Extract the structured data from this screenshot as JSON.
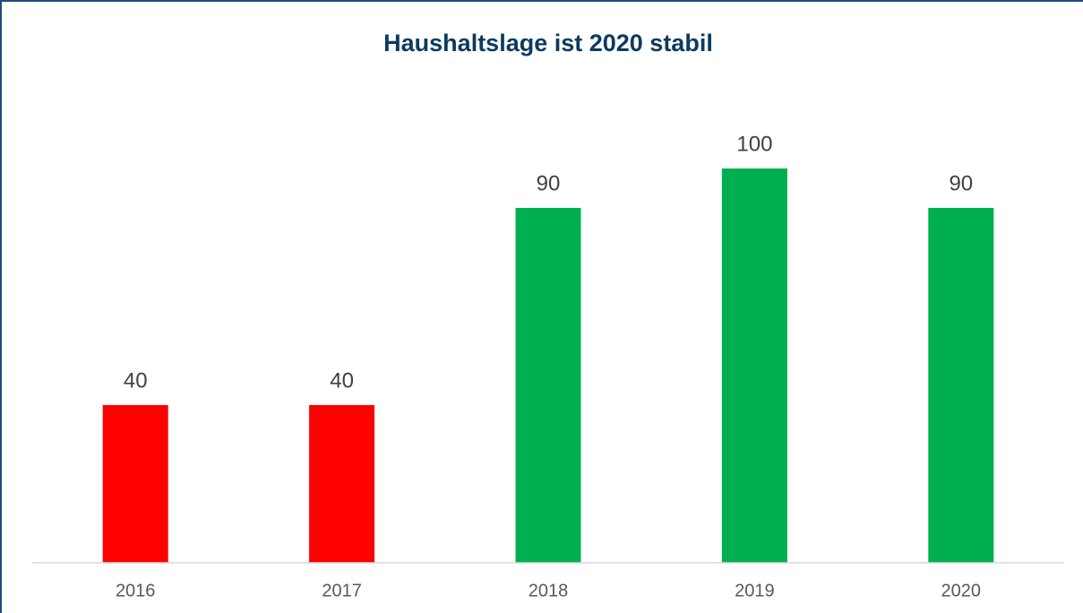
{
  "chart_data": {
    "type": "bar",
    "title": "Haushaltslage ist 2020 stabil",
    "categories": [
      "2016",
      "2017",
      "2018",
      "2019",
      "2020"
    ],
    "values": [
      40,
      40,
      90,
      100,
      90
    ],
    "colors": [
      "#ff0000",
      "#ff0000",
      "#00b050",
      "#00b050",
      "#00b050"
    ],
    "ylim": [
      0,
      100
    ]
  }
}
